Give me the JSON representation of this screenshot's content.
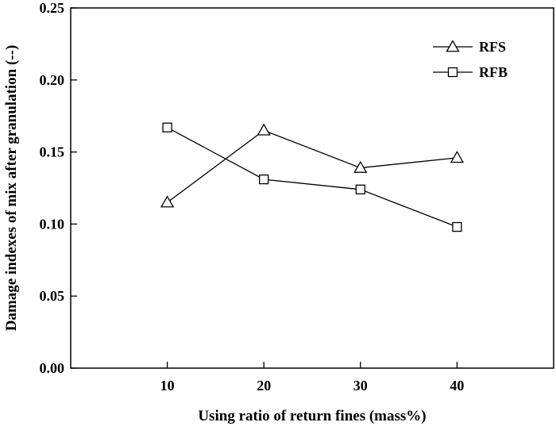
{
  "chart_data": {
    "type": "line",
    "xlabel": "Using ratio of return fines (mass%)",
    "ylabel": "Damage indexes of mix  after granulation (--)",
    "x": [
      10,
      20,
      30,
      40
    ],
    "x_ticks": [
      "10",
      "20",
      "30",
      "40"
    ],
    "y_ticks": [
      "0.00",
      "0.05",
      "0.10",
      "0.15",
      "0.20",
      "0.25"
    ],
    "xlim": [
      0,
      50
    ],
    "ylim": [
      0,
      0.25
    ],
    "grid": false,
    "legend_position": "top-right",
    "series": [
      {
        "name": "RFS",
        "marker": "triangle",
        "values": [
          0.115,
          0.165,
          0.139,
          0.146
        ]
      },
      {
        "name": "RFB",
        "marker": "square",
        "values": [
          0.167,
          0.131,
          0.124,
          0.098
        ]
      }
    ]
  }
}
